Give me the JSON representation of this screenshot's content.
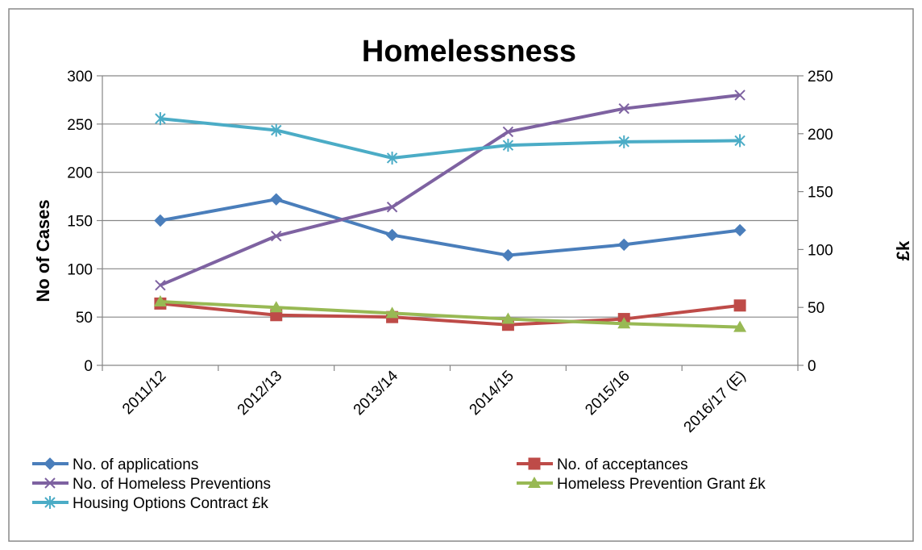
{
  "chart_data": {
    "type": "line",
    "title": "Homelessness",
    "ylabel": "No of Cases",
    "y2label": "£k",
    "categories": [
      "2011/12",
      "2012/13",
      "2013/14",
      "2014/15",
      "2015/16",
      "2016/17 (E)"
    ],
    "ylim": [
      0,
      300
    ],
    "y2lim": [
      0,
      250
    ],
    "yticks": [
      "0",
      "50",
      "100",
      "150",
      "200",
      "250",
      "300"
    ],
    "y2ticks": [
      "0",
      "50",
      "100",
      "150",
      "200",
      "250"
    ],
    "grid": true,
    "legend_position": "bottom",
    "series": [
      {
        "name": "No. of applications",
        "axis": "left",
        "color": "#4A7EBB",
        "marker": "diamond",
        "values": [
          150,
          172,
          135,
          114,
          125,
          140
        ]
      },
      {
        "name": "No. of acceptances",
        "axis": "left",
        "color": "#BE4B48",
        "marker": "square",
        "values": [
          64,
          52,
          50,
          42,
          48,
          62
        ]
      },
      {
        "name": "No. of Homeless Preventions",
        "axis": "left",
        "color": "#7E62A1",
        "marker": "x",
        "values": [
          83,
          134,
          164,
          242,
          266,
          280
        ]
      },
      {
        "name": "Homeless Prevention Grant £k",
        "axis": "right",
        "color": "#98B954",
        "marker": "triangle",
        "values": [
          55,
          50,
          45,
          40,
          36,
          33
        ]
      },
      {
        "name": "Housing Options Contract £k",
        "axis": "right",
        "color": "#4BACC6",
        "marker": "star",
        "values": [
          213,
          203,
          179,
          190,
          193,
          194
        ]
      }
    ]
  }
}
